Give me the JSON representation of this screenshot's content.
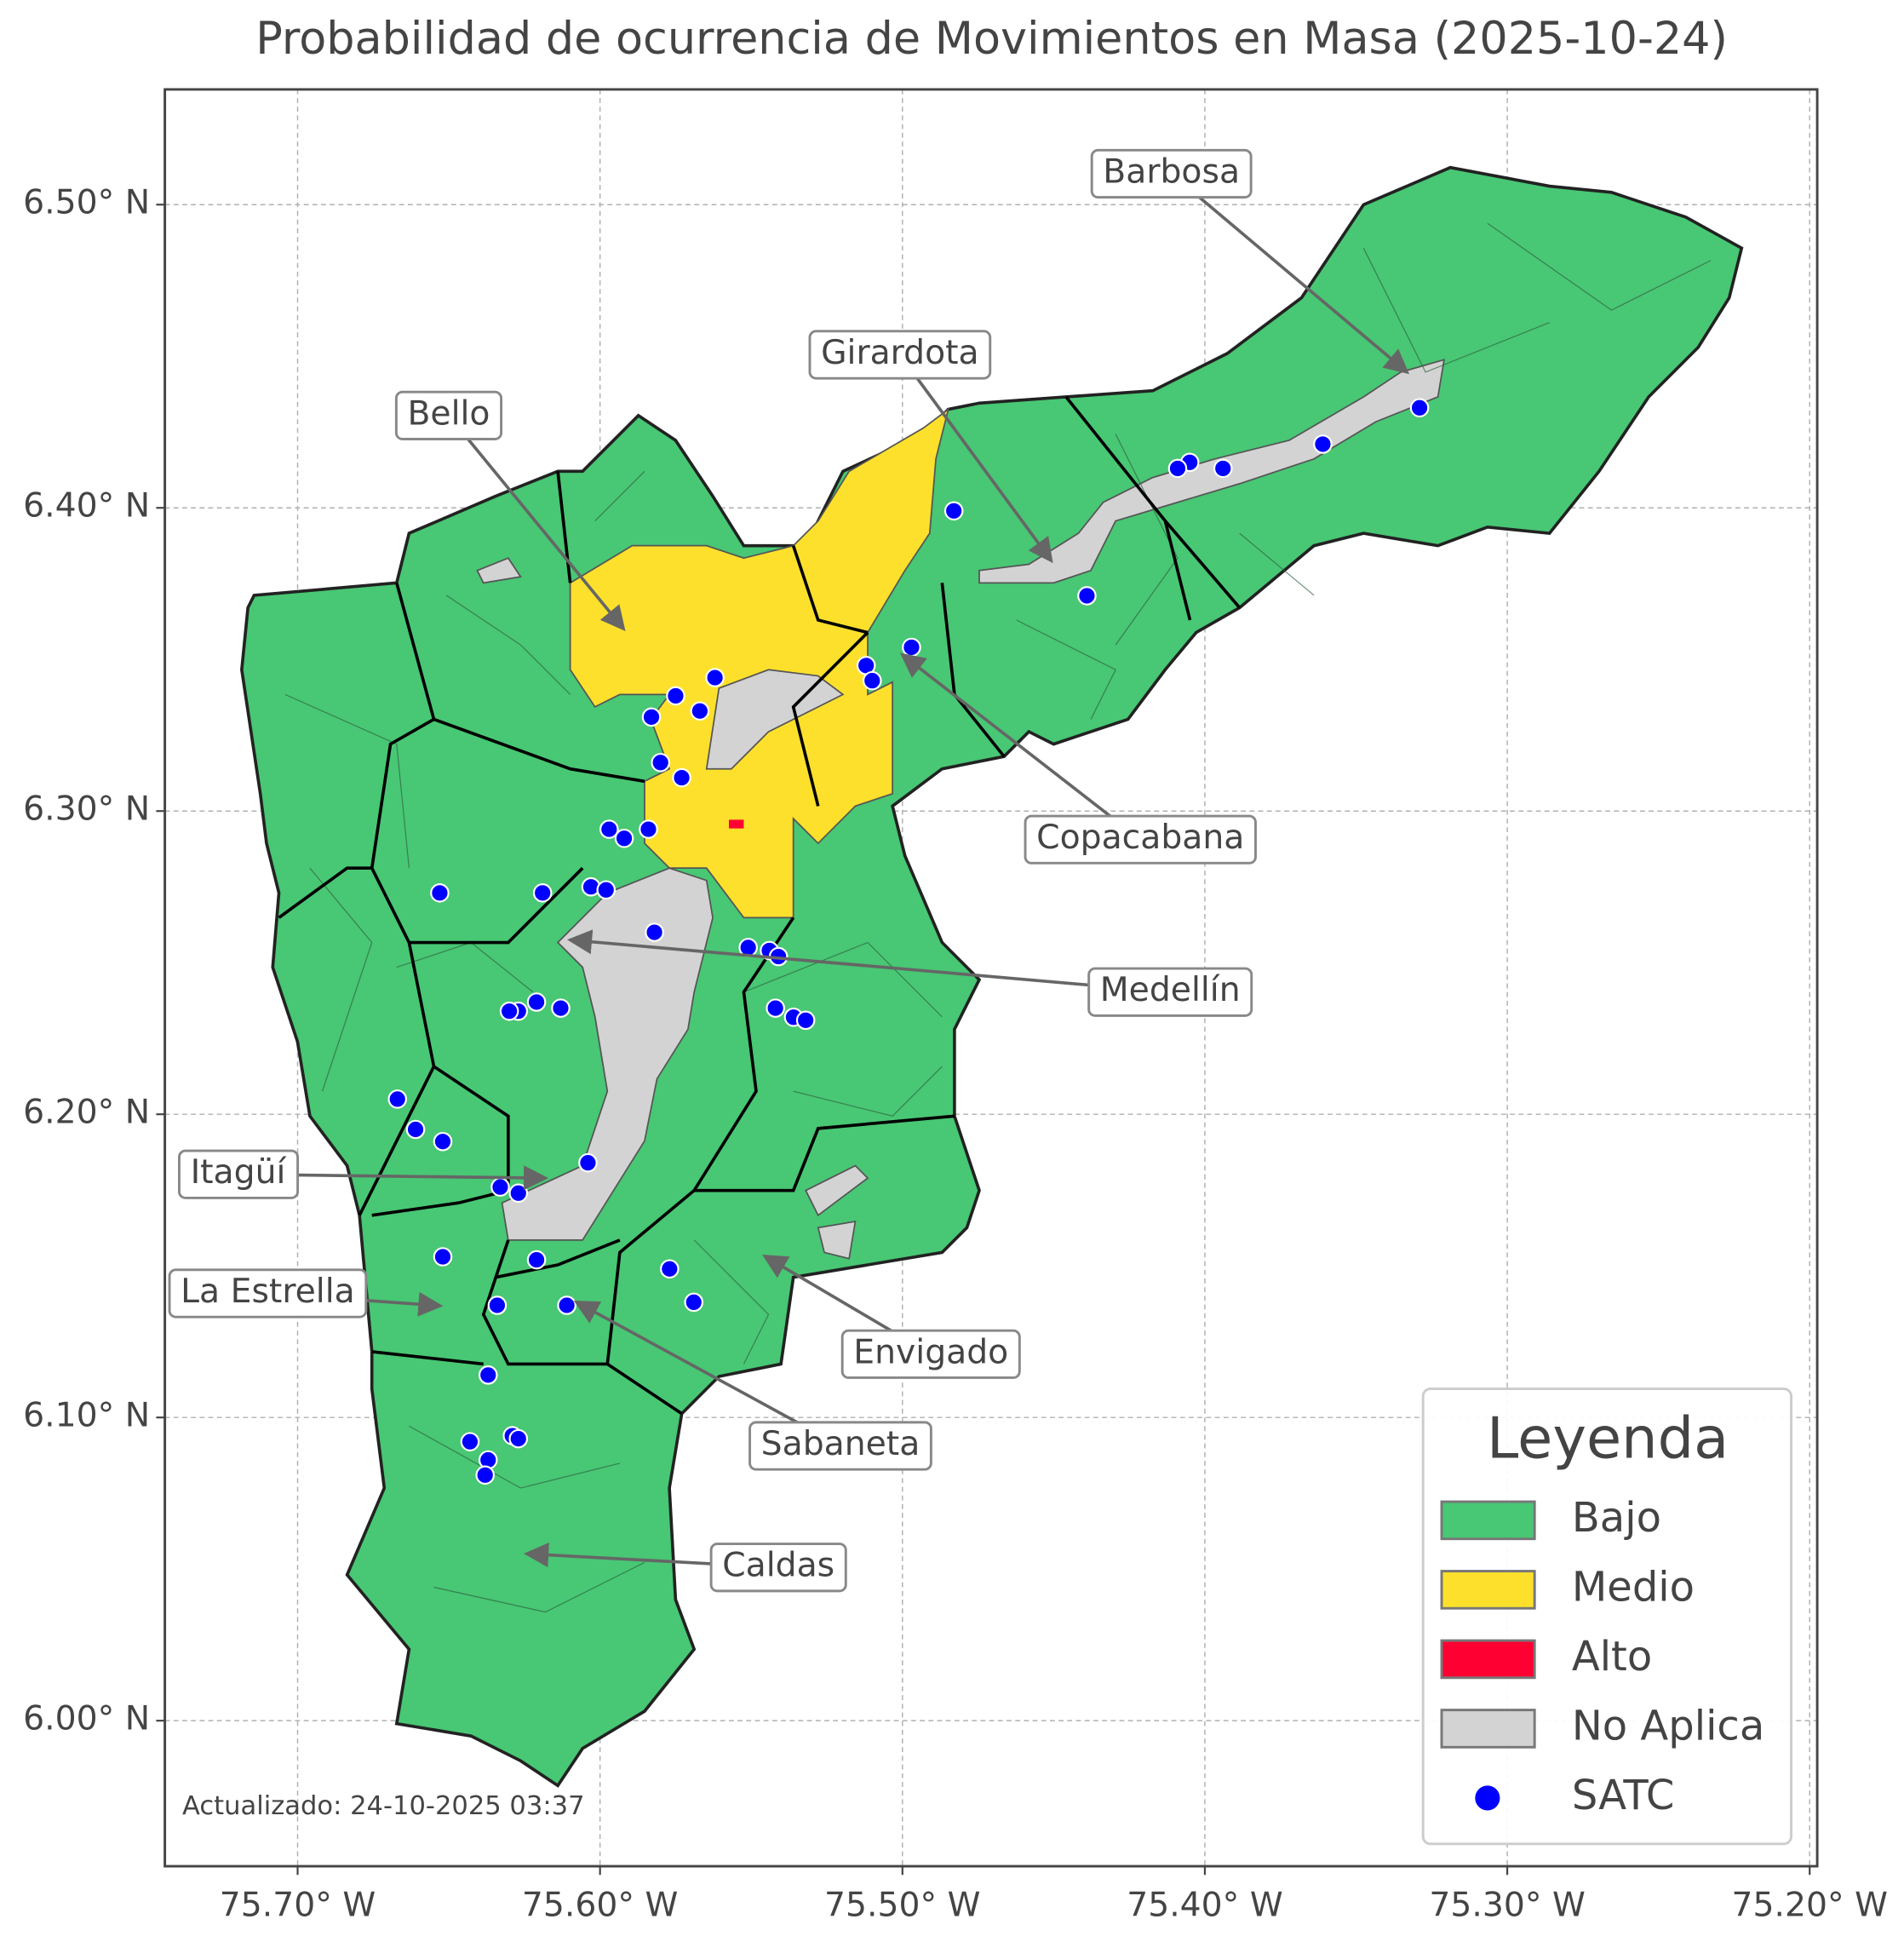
{
  "map": {
    "title": "Probabilidad de ocurrencia de Movimientos en Masa (2025-10-24)",
    "xlim": [
      -75.7439,
      -75.1975
    ],
    "ylim": [
      5.952,
      6.538
    ],
    "xticks": [
      {
        "value": -75.7,
        "label": "75.70° W"
      },
      {
        "value": -75.6,
        "label": "75.60° W"
      },
      {
        "value": -75.5,
        "label": "75.50° W"
      },
      {
        "value": -75.4,
        "label": "75.40° W"
      },
      {
        "value": -75.3,
        "label": "75.30° W"
      },
      {
        "value": -75.2,
        "label": "75.20° W"
      }
    ],
    "yticks": [
      {
        "value": 6.0,
        "label": "6.00° N"
      },
      {
        "value": 6.1,
        "label": "6.10° N"
      },
      {
        "value": 6.2,
        "label": "6.20° N"
      },
      {
        "value": 6.3,
        "label": "6.30° N"
      },
      {
        "value": 6.4,
        "label": "6.40° N"
      },
      {
        "value": 6.5,
        "label": "6.50° N"
      }
    ],
    "grid": true,
    "categories": [
      {
        "name": "Bajo",
        "color": "#48c774"
      },
      {
        "name": "Medio",
        "color": "#fde02b"
      },
      {
        "name": "Alto",
        "color": "#ff0033"
      },
      {
        "name": "No Aplica",
        "color": "#d3d3d3"
      }
    ],
    "satc": {
      "name": "SATC",
      "color": "#0000ff",
      "lon": [
        -75.329,
        -75.361,
        -75.394,
        -75.405,
        -75.409,
        -75.483,
        -75.439,
        -75.497,
        -75.512,
        -75.51,
        -75.562,
        -75.575,
        -75.567,
        -75.583,
        -75.58,
        -75.573,
        -75.597,
        -75.592,
        -75.584,
        -75.653,
        -75.619,
        -75.603,
        -75.598,
        -75.582,
        -75.551,
        -75.544,
        -75.541,
        -75.621,
        -75.627,
        -75.63,
        -75.613,
        -75.542,
        -75.536,
        -75.532,
        -75.667,
        -75.661,
        -75.652,
        -75.604,
        -75.633,
        -75.627,
        -75.652,
        -75.621,
        -75.577,
        -75.569,
        -75.634,
        -75.611,
        -75.637,
        -75.643,
        -75.629,
        -75.627,
        -75.637,
        -75.638
      ],
      "lat": [
        6.433,
        6.421,
        6.413,
        6.415,
        6.413,
        6.399,
        6.371,
        6.354,
        6.348,
        6.343,
        6.344,
        6.338,
        6.333,
        6.331,
        6.316,
        6.311,
        6.294,
        6.291,
        6.294,
        6.273,
        6.273,
        6.275,
        6.274,
        6.26,
        6.255,
        6.254,
        6.252,
        6.237,
        6.234,
        6.234,
        6.235,
        6.235,
        6.232,
        6.231,
        6.205,
        6.195,
        6.191,
        6.184,
        6.176,
        6.174,
        6.153,
        6.152,
        6.149,
        6.138,
        6.137,
        6.137,
        6.114,
        6.092,
        6.094,
        6.093,
        6.086,
        6.081
      ]
    },
    "annotations": [
      "Barbosa",
      "Girardota",
      "Bello",
      "Copacabana",
      "Medellín",
      "Itagüí",
      "La Estrella",
      "Envigado",
      "Sabaneta",
      "Caldas"
    ],
    "legend_title": "Leyenda",
    "footer": "Actualizado: 24-10-2025 03:37"
  }
}
